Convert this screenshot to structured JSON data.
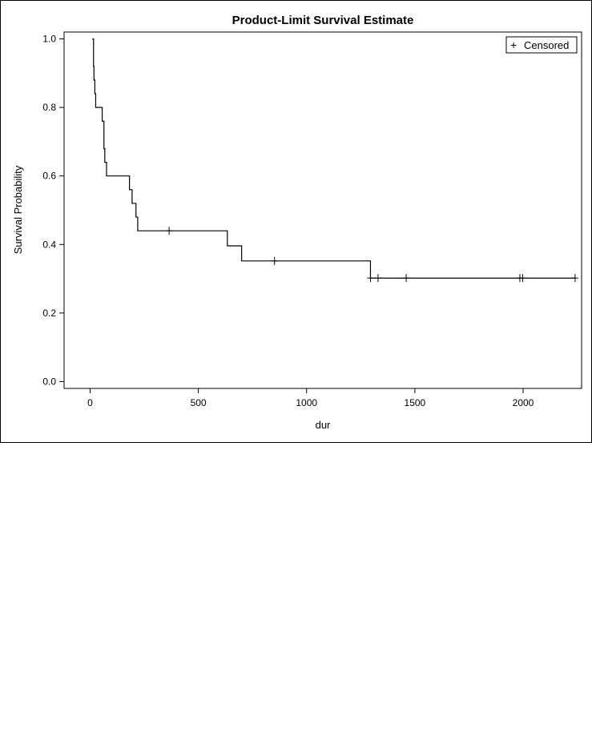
{
  "chart_data": {
    "type": "line",
    "title": "Product-Limit Survival Estimate",
    "xlabel": "dur",
    "ylabel": "Survival Probability",
    "xlim": [
      -120,
      2270
    ],
    "ylim": [
      -0.02,
      1.02
    ],
    "xticks": [
      0,
      500,
      1000,
      1500,
      2000
    ],
    "xtick_labels": [
      "0",
      "500",
      "1000",
      "1500",
      "2000"
    ],
    "yticks": [
      0.0,
      0.2,
      0.4,
      0.6,
      0.8,
      1.0
    ],
    "ytick_labels": [
      "0.0",
      "0.2",
      "0.4",
      "0.6",
      "0.8",
      "1.0"
    ],
    "grid": false,
    "legend": {
      "position": "top-right",
      "entries": [
        {
          "symbol": "+",
          "label": "Censored"
        }
      ]
    },
    "series": [
      {
        "step": "post",
        "x": [
          10,
          16,
          18,
          22,
          26,
          56,
          64,
          68,
          76,
          182,
          194,
          212,
          220,
          634,
          700,
          1295,
          2240
        ],
        "y": [
          1.0,
          0.92,
          0.88,
          0.84,
          0.8,
          0.76,
          0.68,
          0.64,
          0.6,
          0.56,
          0.52,
          0.48,
          0.44,
          0.396,
          0.352,
          0.302,
          0.302
        ]
      }
    ],
    "censored": {
      "x": [
        365,
        852,
        1295,
        1330,
        1460,
        1985,
        1998,
        2240
      ],
      "y": [
        0.44,
        0.352,
        0.302,
        0.302,
        0.302,
        0.302,
        0.302,
        0.302
      ]
    },
    "colors": {
      "line": "#000000",
      "axis": "#000000",
      "text": "#000000"
    }
  }
}
